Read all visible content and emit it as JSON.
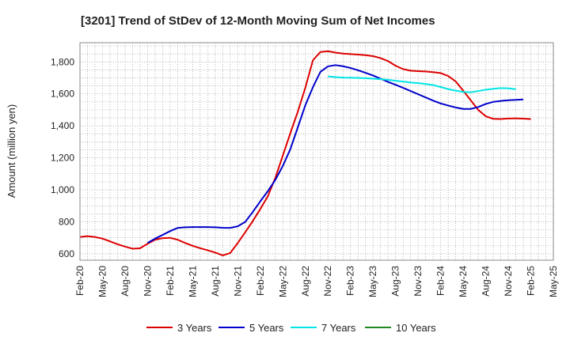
{
  "chart_data": {
    "type": "line",
    "title": "[3201]  Trend of StDev of 12-Month Moving Sum of Net Incomes",
    "xlabel": "",
    "ylabel": "Amount (million yen)",
    "ylim": [
      560,
      1920
    ],
    "yticks": [
      600,
      800,
      1000,
      1200,
      1400,
      1600,
      1800
    ],
    "ytick_labels": [
      "600",
      "800",
      "1,000",
      "1,200",
      "1,400",
      "1,600",
      "1,800"
    ],
    "x_ticks": [
      "Feb-20",
      "May-20",
      "Aug-20",
      "Nov-20",
      "Feb-21",
      "May-21",
      "Aug-21",
      "Nov-21",
      "Feb-22",
      "May-22",
      "Aug-22",
      "Nov-22",
      "Feb-23",
      "May-23",
      "Aug-23",
      "Nov-23",
      "Feb-24",
      "May-24",
      "Aug-24",
      "Nov-24",
      "Feb-25",
      "May-25"
    ],
    "grid": true,
    "legend_position": "bottom",
    "series": [
      {
        "name": "3 Years",
        "color": "#dd0000",
        "start_index": 0,
        "values": [
          705,
          710,
          705,
          695,
          678,
          660,
          645,
          632,
          635,
          663,
          688,
          698,
          700,
          688,
          668,
          650,
          635,
          622,
          608,
          590,
          605,
          668,
          735,
          805,
          880,
          960,
          1075,
          1215,
          1355,
          1490,
          1640,
          1810,
          1862,
          1867,
          1858,
          1852,
          1849,
          1846,
          1842,
          1836,
          1824,
          1805,
          1776,
          1755,
          1745,
          1742,
          1740,
          1736,
          1730,
          1712,
          1678,
          1620,
          1560,
          1500,
          1460,
          1444,
          1443,
          1446,
          1447,
          1445,
          1442
        ]
      },
      {
        "name": "5 Years",
        "color": "#0000cc",
        "start_index": 9,
        "values": [
          668,
          695,
          718,
          742,
          762,
          766,
          767,
          767,
          767,
          766,
          763,
          762,
          772,
          800,
          862,
          928,
          992,
          1062,
          1150,
          1255,
          1392,
          1530,
          1642,
          1738,
          1772,
          1780,
          1773,
          1762,
          1748,
          1732,
          1715,
          1695,
          1675,
          1657,
          1638,
          1618,
          1598,
          1578,
          1558,
          1540,
          1527,
          1515,
          1506,
          1506,
          1518,
          1537,
          1550,
          1556,
          1560,
          1563,
          1565
        ]
      },
      {
        "name": "7 Years",
        "color": "#00e5e5",
        "start_index": 33,
        "values": [
          1710,
          1705,
          1702,
          1701,
          1700,
          1698,
          1695,
          1692,
          1688,
          1682,
          1677,
          1671,
          1667,
          1662,
          1655,
          1643,
          1630,
          1620,
          1612,
          1610,
          1618,
          1626,
          1632,
          1636,
          1635,
          1629
        ]
      },
      {
        "name": "10 Years",
        "color": "#228822",
        "start_index": 0,
        "values": []
      }
    ]
  }
}
